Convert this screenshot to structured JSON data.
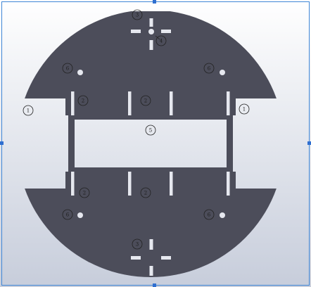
{
  "colors": {
    "viewport_top": "#ffffff",
    "viewport_bottom": "#c7cddb",
    "plate": "#4c4d5a",
    "plate_edge": "#333440",
    "callout_stroke": "#222222",
    "selection_frame": "#3f86d6",
    "handle": "#2f6fd0"
  },
  "callouts": {
    "c1": "1",
    "c2": "2",
    "c3": "3",
    "c4": "4",
    "c5": "5",
    "c6": "6"
  }
}
